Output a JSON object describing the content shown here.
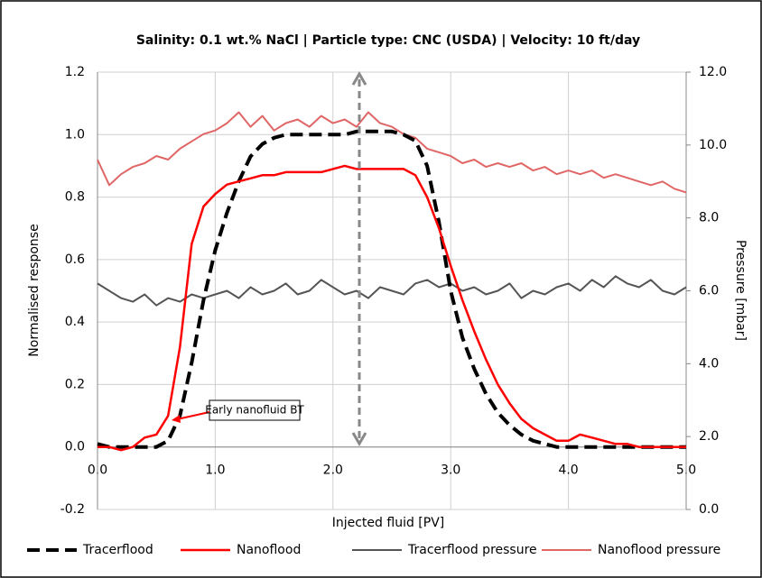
{
  "chart_data": {
    "type": "line",
    "title": "Salinity: 0.1 wt.% NaCl | Particle type: CNC (USDA) | Velocity: 10 ft/day",
    "x_label": "Injected fluid [PV]",
    "y_label": "Normalised response",
    "y2_label": "Pressure [mbar]",
    "annotation": "Early nanofluid BT",
    "x": [
      0,
      0.1,
      0.2,
      0.3,
      0.4,
      0.5,
      0.6,
      0.7,
      0.8,
      0.9,
      1.0,
      1.1,
      1.2,
      1.3,
      1.4,
      1.5,
      1.6,
      1.7,
      1.8,
      1.9,
      2.0,
      2.1,
      2.2,
      2.3,
      2.4,
      2.5,
      2.6,
      2.7,
      2.8,
      2.9,
      3.0,
      3.1,
      3.2,
      3.3,
      3.4,
      3.5,
      3.6,
      3.7,
      3.8,
      3.9,
      4.0,
      4.1,
      4.2,
      4.3,
      4.4,
      4.5,
      4.6,
      4.7,
      4.8,
      4.9,
      5.0
    ],
    "xlim": [
      0,
      5
    ],
    "ylim": [
      -0.2,
      1.2
    ],
    "y2lim": [
      0,
      12
    ],
    "xticks": [
      {
        "value": 0,
        "label": "0.0"
      },
      {
        "value": 1,
        "label": "1.0"
      },
      {
        "value": 2,
        "label": "2.0"
      },
      {
        "value": 3,
        "label": "3.0"
      },
      {
        "value": 4,
        "label": "4.0"
      },
      {
        "value": 5,
        "label": "5.0"
      }
    ],
    "yticks": [
      {
        "value": -0.2,
        "label": "-0.2"
      },
      {
        "value": 0,
        "label": "0.0"
      },
      0.2,
      0.4,
      0.6,
      0.8,
      {
        "value": 1,
        "label": "1.0"
      },
      1.2
    ],
    "y2ticks": [
      {
        "value": 0,
        "label": "0.0"
      },
      {
        "value": 2,
        "label": "2.0"
      },
      {
        "value": 4,
        "label": "4.0"
      },
      {
        "value": 6,
        "label": "6.0"
      },
      {
        "value": 8,
        "label": "8.0"
      },
      {
        "value": 10,
        "label": "10.0"
      },
      {
        "value": 12,
        "label": "12.0"
      }
    ],
    "grid": true,
    "legend": "bottom",
    "series": [
      {
        "name": "Tracerflood",
        "color": "#000000",
        "style": "dashed",
        "values": [
          0.01,
          0,
          0,
          0,
          0,
          0,
          0.02,
          0.1,
          0.27,
          0.47,
          0.63,
          0.75,
          0.85,
          0.93,
          0.97,
          0.99,
          1.0,
          1.0,
          1.0,
          1.0,
          1.0,
          1.0,
          1.01,
          1.01,
          1.01,
          1.01,
          1.0,
          0.98,
          0.9,
          0.72,
          0.5,
          0.35,
          0.25,
          0.17,
          0.11,
          0.07,
          0.04,
          0.02,
          0.01,
          0,
          0,
          0,
          0,
          0,
          0,
          0,
          0,
          0,
          0,
          0,
          0
        ]
      },
      {
        "name": "Nanoflood",
        "color": "#ff0000",
        "style": "solid",
        "values": [
          0,
          0,
          -0.01,
          0,
          0.03,
          0.04,
          0.1,
          0.32,
          0.65,
          0.77,
          0.81,
          0.84,
          0.85,
          0.86,
          0.87,
          0.87,
          0.88,
          0.88,
          0.88,
          0.88,
          0.89,
          0.9,
          0.89,
          0.89,
          0.89,
          0.89,
          0.89,
          0.87,
          0.8,
          0.7,
          0.58,
          0.47,
          0.37,
          0.28,
          0.2,
          0.14,
          0.09,
          0.06,
          0.04,
          0.02,
          0.02,
          0.04,
          0.03,
          0.02,
          0.01,
          0.01,
          0,
          0,
          0,
          0,
          0
        ]
      },
      {
        "name": "Tracerflood pressure",
        "color": "#555555",
        "style": "solid",
        "axis": "y2",
        "values": [
          6.2,
          6.0,
          5.8,
          5.7,
          5.9,
          5.6,
          5.8,
          5.7,
          5.9,
          5.8,
          5.9,
          6.0,
          5.8,
          6.1,
          5.9,
          6.0,
          6.2,
          5.9,
          6.0,
          6.3,
          6.1,
          5.9,
          6.0,
          5.8,
          6.1,
          6.0,
          5.9,
          6.2,
          6.3,
          6.1,
          6.2,
          6.0,
          6.1,
          5.9,
          6.0,
          6.2,
          5.8,
          6.0,
          5.9,
          6.1,
          6.2,
          6.0,
          6.3,
          6.1,
          6.4,
          6.2,
          6.1,
          6.3,
          6.0,
          5.9,
          6.1
        ]
      },
      {
        "name": "Nanoflood pressure",
        "color": "#e06666",
        "style": "solid",
        "axis": "y2",
        "values": [
          9.6,
          8.9,
          9.2,
          9.4,
          9.5,
          9.7,
          9.6,
          9.9,
          10.1,
          10.3,
          10.4,
          10.6,
          10.9,
          10.5,
          10.8,
          10.4,
          10.6,
          10.7,
          10.5,
          10.8,
          10.6,
          10.7,
          10.5,
          10.9,
          10.6,
          10.5,
          10.3,
          10.2,
          9.9,
          9.8,
          9.7,
          9.5,
          9.6,
          9.4,
          9.5,
          9.4,
          9.5,
          9.3,
          9.4,
          9.2,
          9.3,
          9.2,
          9.3,
          9.1,
          9.2,
          9.1,
          9.0,
          8.9,
          9.0,
          8.8,
          8.7
        ]
      }
    ]
  }
}
